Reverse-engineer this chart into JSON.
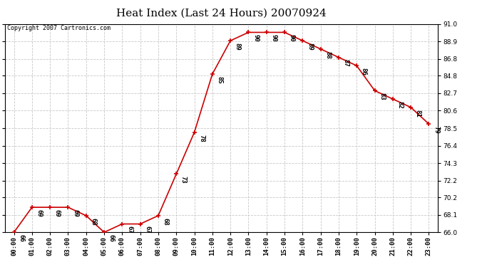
{
  "title": "Heat Index (Last 24 Hours) 20070924",
  "copyright": "Copyright 2007 Cartronics.com",
  "hours": [
    "00:00",
    "01:00",
    "02:00",
    "03:00",
    "04:00",
    "05:00",
    "06:00",
    "07:00",
    "08:00",
    "09:00",
    "10:00",
    "11:00",
    "12:00",
    "13:00",
    "14:00",
    "15:00",
    "16:00",
    "17:00",
    "18:00",
    "19:00",
    "20:00",
    "21:00",
    "22:00",
    "23:00"
  ],
  "values": [
    66,
    69,
    69,
    69,
    68,
    66,
    67,
    67,
    68,
    73,
    78,
    85,
    89,
    90,
    90,
    90,
    89,
    88,
    87,
    86,
    83,
    82,
    81,
    79
  ],
  "line_color": "#cc0000",
  "marker_color": "#cc0000",
  "background_color": "#ffffff",
  "plot_bg_color": "#ffffff",
  "grid_color": "#c8c8c8",
  "ylim_min": 66.0,
  "ylim_max": 91.0,
  "yticks": [
    66.0,
    68.1,
    70.2,
    72.2,
    74.3,
    76.4,
    78.5,
    80.6,
    82.7,
    84.8,
    86.8,
    88.9,
    91.0
  ],
  "title_fontsize": 11,
  "label_fontsize": 6.5,
  "tick_fontsize": 6.5,
  "copyright_fontsize": 6
}
